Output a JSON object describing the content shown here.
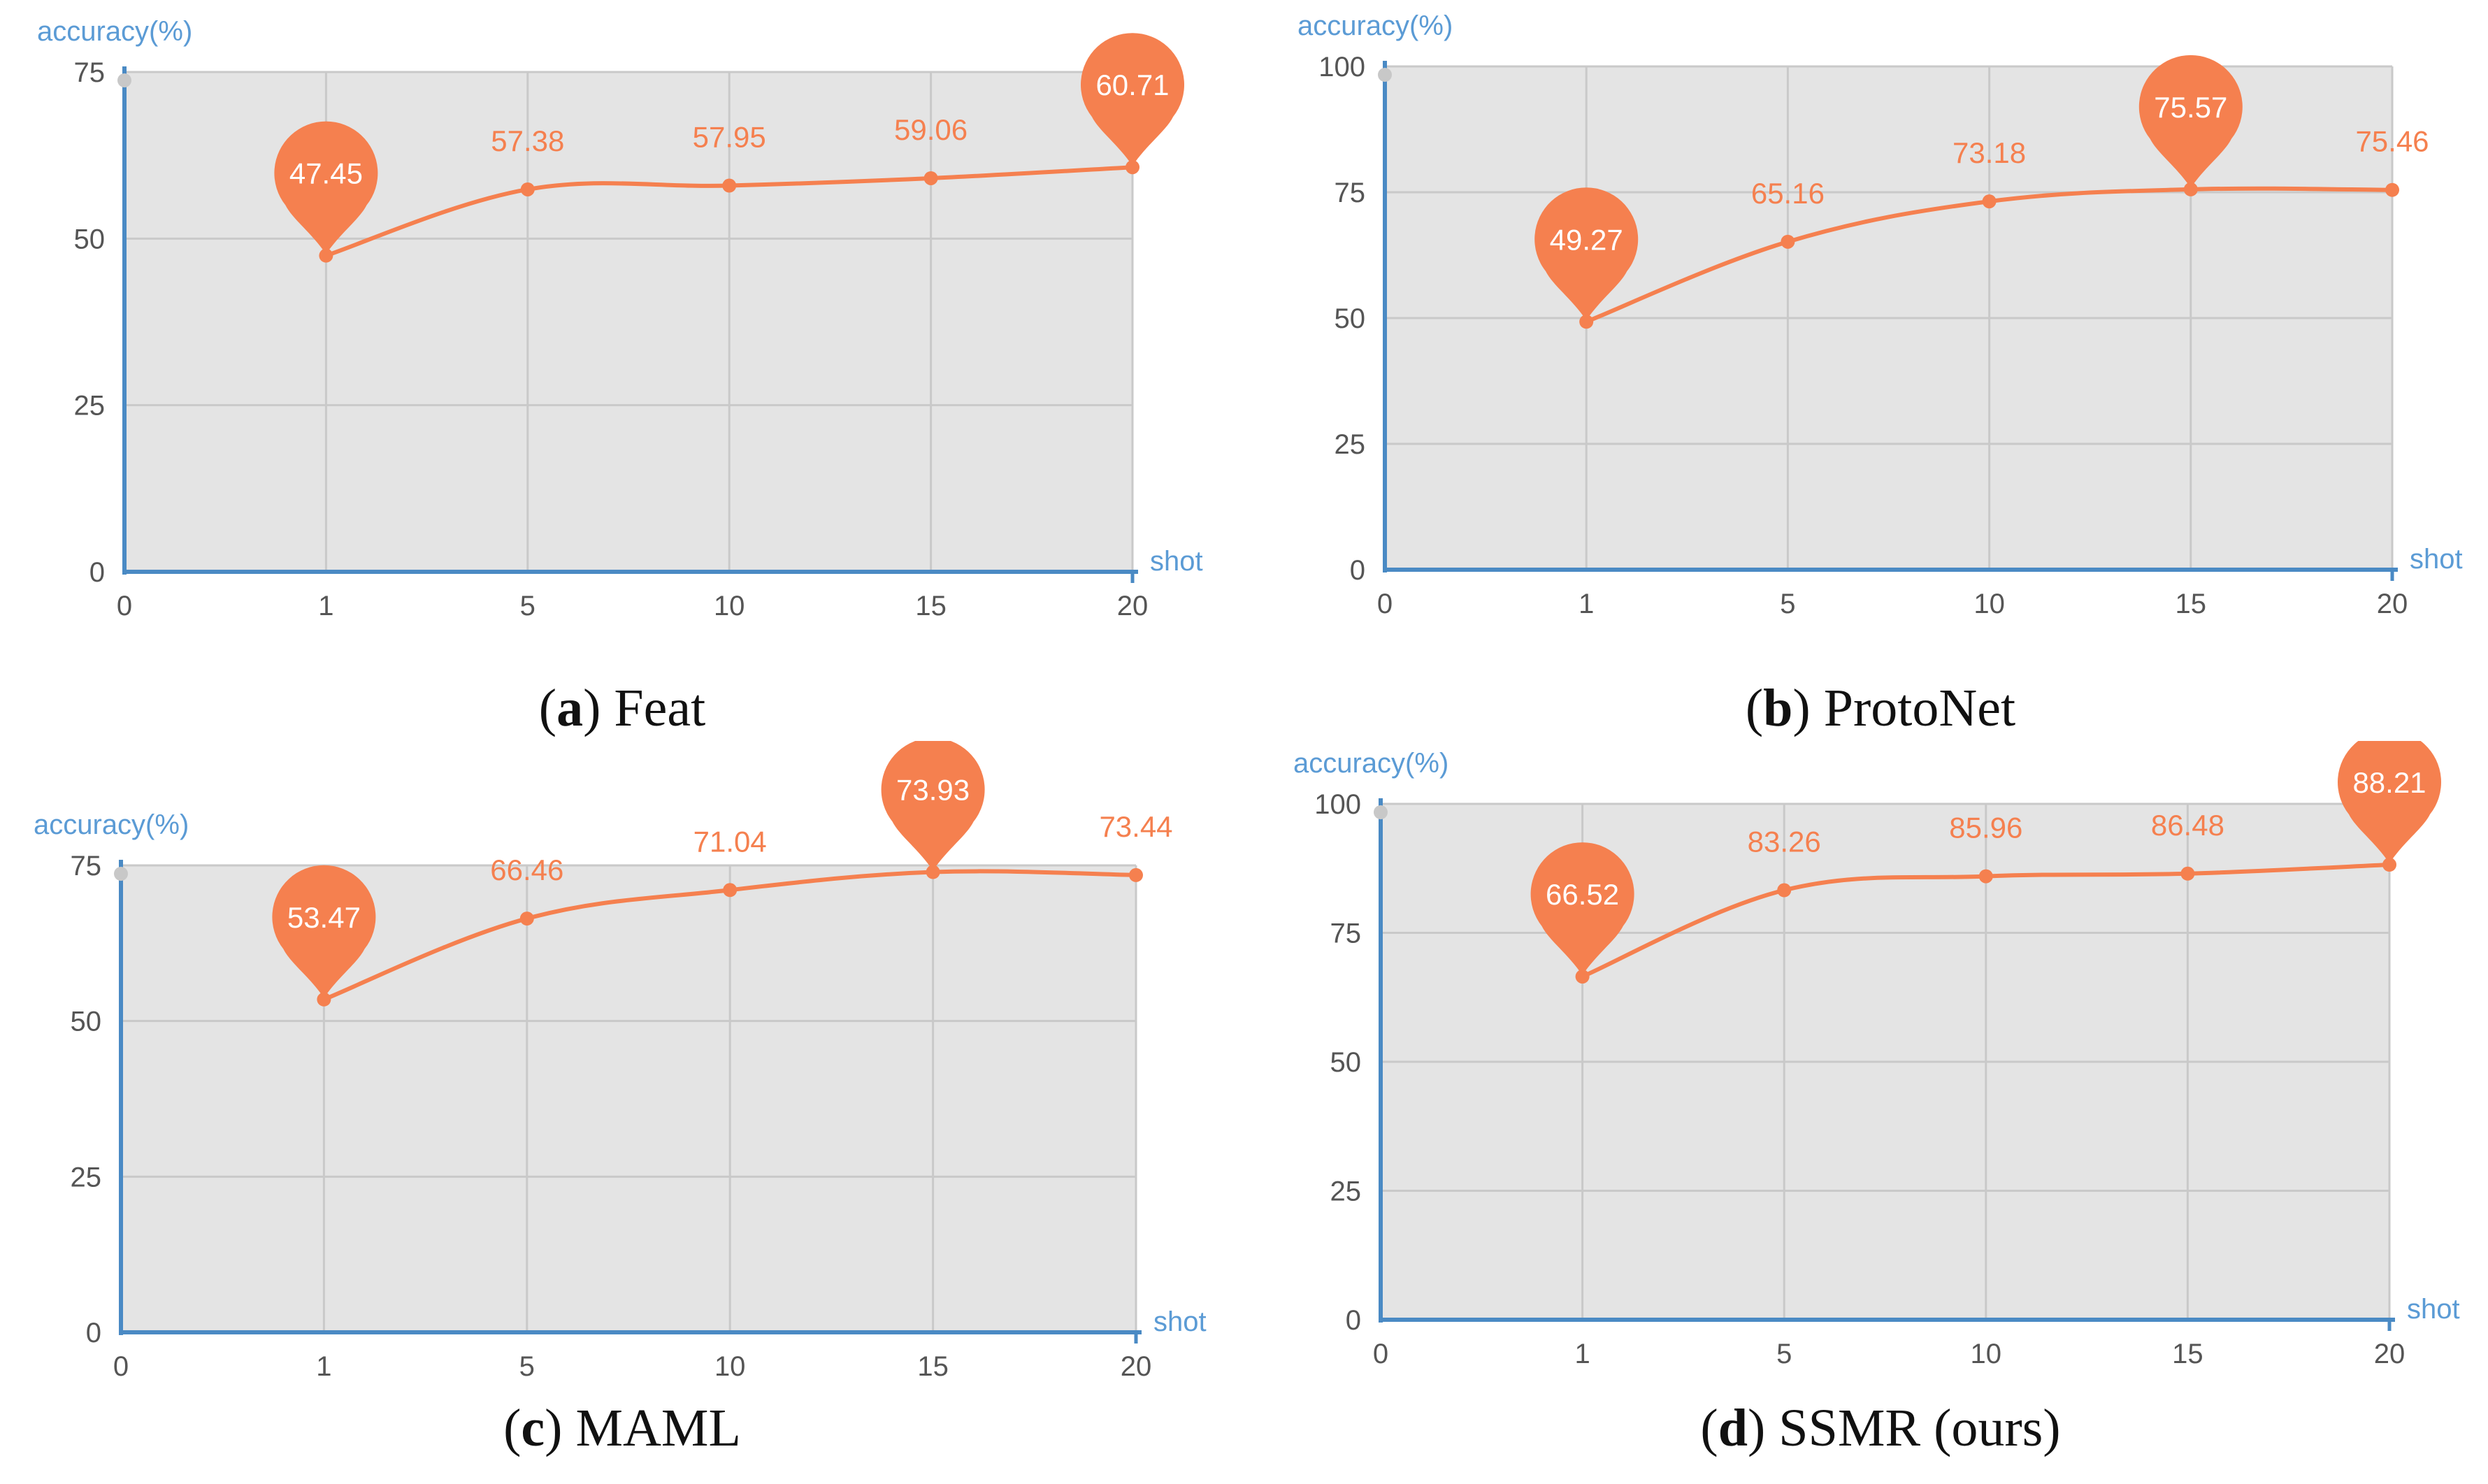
{
  "chart_data": [
    {
      "type": "line",
      "id": "a",
      "caption_letter": "a",
      "caption_text": "Feat",
      "ylabel": "accuracy(%)",
      "xlabel": "shot",
      "x_ticks": [
        "0",
        "1",
        "5",
        "10",
        "15",
        "20"
      ],
      "y_ticks": [
        0,
        25,
        50,
        75
      ],
      "ylim": [
        0,
        75
      ],
      "grid": true,
      "series": [
        {
          "name": "accuracy",
          "x": [
            "1",
            "5",
            "10",
            "15",
            "20"
          ],
          "values": [
            47.45,
            57.38,
            57.95,
            59.06,
            60.71
          ],
          "labels": [
            "47.45",
            "57.38",
            "57.95",
            "59.06",
            "60.71"
          ],
          "markpoints": [
            "47.45",
            "60.71"
          ]
        }
      ]
    },
    {
      "type": "line",
      "id": "b",
      "caption_letter": "b",
      "caption_text": "ProtoNet",
      "ylabel": "accuracy(%)",
      "xlabel": "shot",
      "x_ticks": [
        "0",
        "1",
        "5",
        "10",
        "15",
        "20"
      ],
      "y_ticks": [
        0,
        25,
        50,
        75,
        100
      ],
      "ylim": [
        0,
        100
      ],
      "grid": true,
      "series": [
        {
          "name": "accuracy",
          "x": [
            "1",
            "5",
            "10",
            "15",
            "20"
          ],
          "values": [
            49.27,
            65.16,
            73.18,
            75.57,
            75.46
          ],
          "labels": [
            "49.27",
            "65.16",
            "73.18",
            "75.57",
            "75.46"
          ],
          "markpoints": [
            "49.27",
            "75.57"
          ]
        }
      ]
    },
    {
      "type": "line",
      "id": "c",
      "caption_letter": "c",
      "caption_text": "MAML",
      "ylabel": "accuracy(%)",
      "xlabel": "shot",
      "x_ticks": [
        "0",
        "1",
        "5",
        "10",
        "15",
        "20"
      ],
      "y_ticks": [
        0,
        25,
        50,
        75
      ],
      "ylim": [
        0,
        75
      ],
      "grid": true,
      "series": [
        {
          "name": "accuracy",
          "x": [
            "1",
            "5",
            "10",
            "15",
            "20"
          ],
          "values": [
            53.47,
            66.46,
            71.04,
            73.93,
            73.44
          ],
          "labels": [
            "53.47",
            "66.46",
            "71.04",
            "73.93",
            "73.44"
          ],
          "markpoints": [
            "53.47",
            "73.93"
          ]
        }
      ]
    },
    {
      "type": "line",
      "id": "d",
      "caption_letter": "d",
      "caption_text": "SSMR (ours)",
      "ylabel": "accuracy(%)",
      "xlabel": "shot",
      "x_ticks": [
        "0",
        "1",
        "5",
        "10",
        "15",
        "20"
      ],
      "y_ticks": [
        0,
        25,
        50,
        75,
        100
      ],
      "ylim": [
        0,
        100
      ],
      "grid": true,
      "series": [
        {
          "name": "accuracy",
          "x": [
            "1",
            "5",
            "10",
            "15",
            "20"
          ],
          "values": [
            66.52,
            83.26,
            85.96,
            86.48,
            88.21
          ],
          "labels": [
            "66.52",
            "83.26",
            "85.96",
            "86.48",
            "88.21"
          ],
          "markpoints": [
            "66.52",
            "88.21"
          ]
        }
      ]
    }
  ],
  "colors": {
    "line": "#f5804f",
    "label": "#f5804f",
    "pin": "#f5804f",
    "axis": "#4a8ac4",
    "axis_text": "#5b9bd5",
    "tick_text": "#555555",
    "plot_bg": "#e4e4e4",
    "grid": "#c9c9c9"
  }
}
